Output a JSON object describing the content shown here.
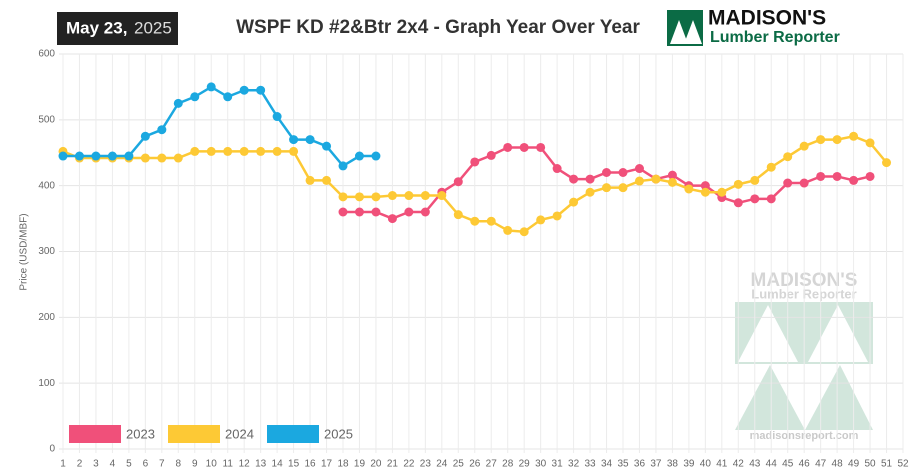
{
  "header": {
    "date_main": "May 23,",
    "date_year": "2025",
    "logo_name": "MADISON'S",
    "logo_sub": "Lumber Reporter"
  },
  "watermark": {
    "name": "MADISON'S",
    "sub": "Lumber Reporter",
    "url": "madisonsreport.com"
  },
  "chart_data": {
    "type": "line",
    "title": "WSPF KD #2&Btr 2x4 - Graph Year Over Year",
    "y_label": "Price (USD/MBF)",
    "categories": [
      "1",
      "2",
      "3",
      "4",
      "5",
      "6",
      "7",
      "8",
      "9",
      "10",
      "11",
      "12",
      "13",
      "14",
      "15",
      "16",
      "17",
      "18",
      "19",
      "20",
      "21",
      "22",
      "23",
      "24",
      "25",
      "26",
      "27",
      "28",
      "29",
      "30",
      "31",
      "32",
      "33",
      "34",
      "35",
      "36",
      "37",
      "38",
      "39",
      "40",
      "41",
      "42",
      "43",
      "44",
      "45",
      "46",
      "47",
      "48",
      "49",
      "50",
      "51",
      "52"
    ],
    "series": [
      {
        "name": "2023",
        "color": "#f0507a",
        "values": [
          null,
          null,
          null,
          null,
          null,
          null,
          null,
          null,
          null,
          null,
          null,
          null,
          null,
          null,
          null,
          null,
          null,
          360,
          360,
          360,
          350,
          360,
          360,
          390,
          406,
          436,
          446,
          458,
          458,
          458,
          426,
          410,
          410,
          420,
          420,
          426,
          410,
          416,
          400,
          400,
          382,
          374,
          380,
          380,
          404,
          404,
          414,
          414,
          408,
          414,
          null,
          null
        ]
      },
      {
        "name": "2024",
        "color": "#fdc935",
        "values": [
          452,
          442,
          442,
          442,
          442,
          442,
          442,
          442,
          452,
          452,
          452,
          452,
          452,
          452,
          452,
          408,
          408,
          383,
          383,
          383,
          385,
          385,
          385,
          385,
          356,
          346,
          346,
          332,
          330,
          348,
          354,
          375,
          390,
          397,
          397,
          407,
          410,
          405,
          395,
          390,
          390,
          402,
          408,
          428,
          444,
          460,
          470,
          470,
          475,
          465,
          435,
          null
        ]
      },
      {
        "name": "2025",
        "color": "#1ba8e0",
        "values": [
          445,
          445,
          445,
          445,
          445,
          475,
          485,
          525,
          535,
          550,
          535,
          545,
          545,
          505,
          470,
          470,
          460,
          430,
          445,
          445,
          null,
          null,
          null,
          null,
          null,
          null,
          null,
          null,
          null,
          null,
          null,
          null,
          null,
          null,
          null,
          null,
          null,
          null,
          null,
          null,
          null,
          null,
          null,
          null,
          null,
          null,
          null,
          null,
          null,
          null,
          null,
          null
        ]
      }
    ],
    "ylim": [
      0,
      600
    ],
    "yticks": [
      0,
      100,
      200,
      300,
      400,
      500,
      600
    ],
    "grid": true,
    "legend": "bottom-left"
  }
}
